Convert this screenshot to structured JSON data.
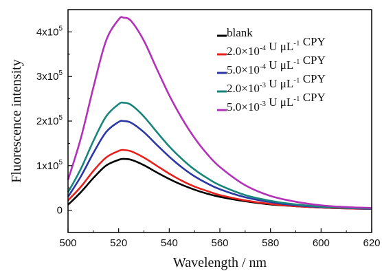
{
  "chart_data": {
    "type": "line",
    "xlabel": "Wavelength / nm",
    "ylabel": "Fluorescence intensity",
    "xlim": [
      500,
      620
    ],
    "ylim": [
      -50000,
      450000
    ],
    "x_ticks": [
      500,
      520,
      540,
      560,
      580,
      600,
      620
    ],
    "x_tick_labels": [
      "500",
      "520",
      "540",
      "560",
      "580",
      "600",
      "620"
    ],
    "y_ticks": [
      0,
      100000,
      200000,
      300000,
      400000
    ],
    "y_tick_labels": [
      {
        "base": "0",
        "exp": ""
      },
      {
        "base": "1x10",
        "exp": "5"
      },
      {
        "base": "2x10",
        "exp": "5"
      },
      {
        "base": "3x10",
        "exp": "5"
      },
      {
        "base": "4x10",
        "exp": "5"
      }
    ],
    "legend_position": "top-right",
    "x": [
      500,
      505,
      510,
      515,
      520,
      522,
      525,
      530,
      535,
      540,
      545,
      550,
      555,
      560,
      570,
      580,
      590,
      600,
      610,
      620
    ],
    "series": [
      {
        "color": "#000000",
        "legend": [
          {
            "t": "blank"
          }
        ],
        "values": [
          12000,
          40000,
          72000,
          100000,
          113000,
          115000,
          113000,
          101000,
          85000,
          70000,
          57000,
          46000,
          37000,
          30000,
          20000,
          13000,
          9000,
          6000,
          4000,
          3000
        ]
      },
      {
        "color": "#e8201b",
        "legend": [
          {
            "t": "2.0×10"
          },
          {
            "t": "-4",
            "sup": true
          },
          {
            "t": " U μL"
          },
          {
            "t": "-1",
            "sup": true
          },
          {
            "t": " CPY"
          }
        ],
        "values": [
          22000,
          52000,
          88000,
          118000,
          133000,
          135000,
          132000,
          118000,
          100000,
          82000,
          66000,
          53000,
          43000,
          34000,
          22000,
          14000,
          9000,
          6000,
          4000,
          3000
        ]
      },
      {
        "color": "#2b37a5",
        "legend": [
          {
            "t": "5.0×10"
          },
          {
            "t": "-4",
            "sup": true
          },
          {
            "t": " U μL"
          },
          {
            "t": "-1",
            "sup": true
          },
          {
            "t": " CPY"
          }
        ],
        "values": [
          30000,
          75000,
          128000,
          175000,
          198000,
          200000,
          196000,
          175000,
          147000,
          120000,
          96000,
          76000,
          60000,
          47000,
          29000,
          18000,
          11000,
          7000,
          5000,
          3000
        ]
      },
      {
        "color": "#17857a",
        "legend": [
          {
            "t": "2.0×10"
          },
          {
            "t": "-3",
            "sup": true
          },
          {
            "t": " U μL"
          },
          {
            "t": "-1",
            "sup": true
          },
          {
            "t": " CPY"
          }
        ],
        "values": [
          40000,
          92000,
          155000,
          210000,
          238000,
          241000,
          236000,
          210000,
          176000,
          143000,
          115000,
          91000,
          72000,
          56000,
          34000,
          21000,
          13000,
          8000,
          5000,
          4000
        ]
      },
      {
        "color": "#b331b8",
        "legend": [
          {
            "t": "5.0×10"
          },
          {
            "t": "-3",
            "sup": true
          },
          {
            "t": " U μL"
          },
          {
            "t": "-1",
            "sup": true
          },
          {
            "t": " CPY"
          }
        ],
        "values": [
          68000,
          160000,
          275000,
          380000,
          428000,
          432000,
          424000,
          380000,
          318000,
          258000,
          206000,
          162000,
          126000,
          97000,
          56000,
          32000,
          19000,
          11000,
          7000,
          5000
        ]
      }
    ]
  }
}
